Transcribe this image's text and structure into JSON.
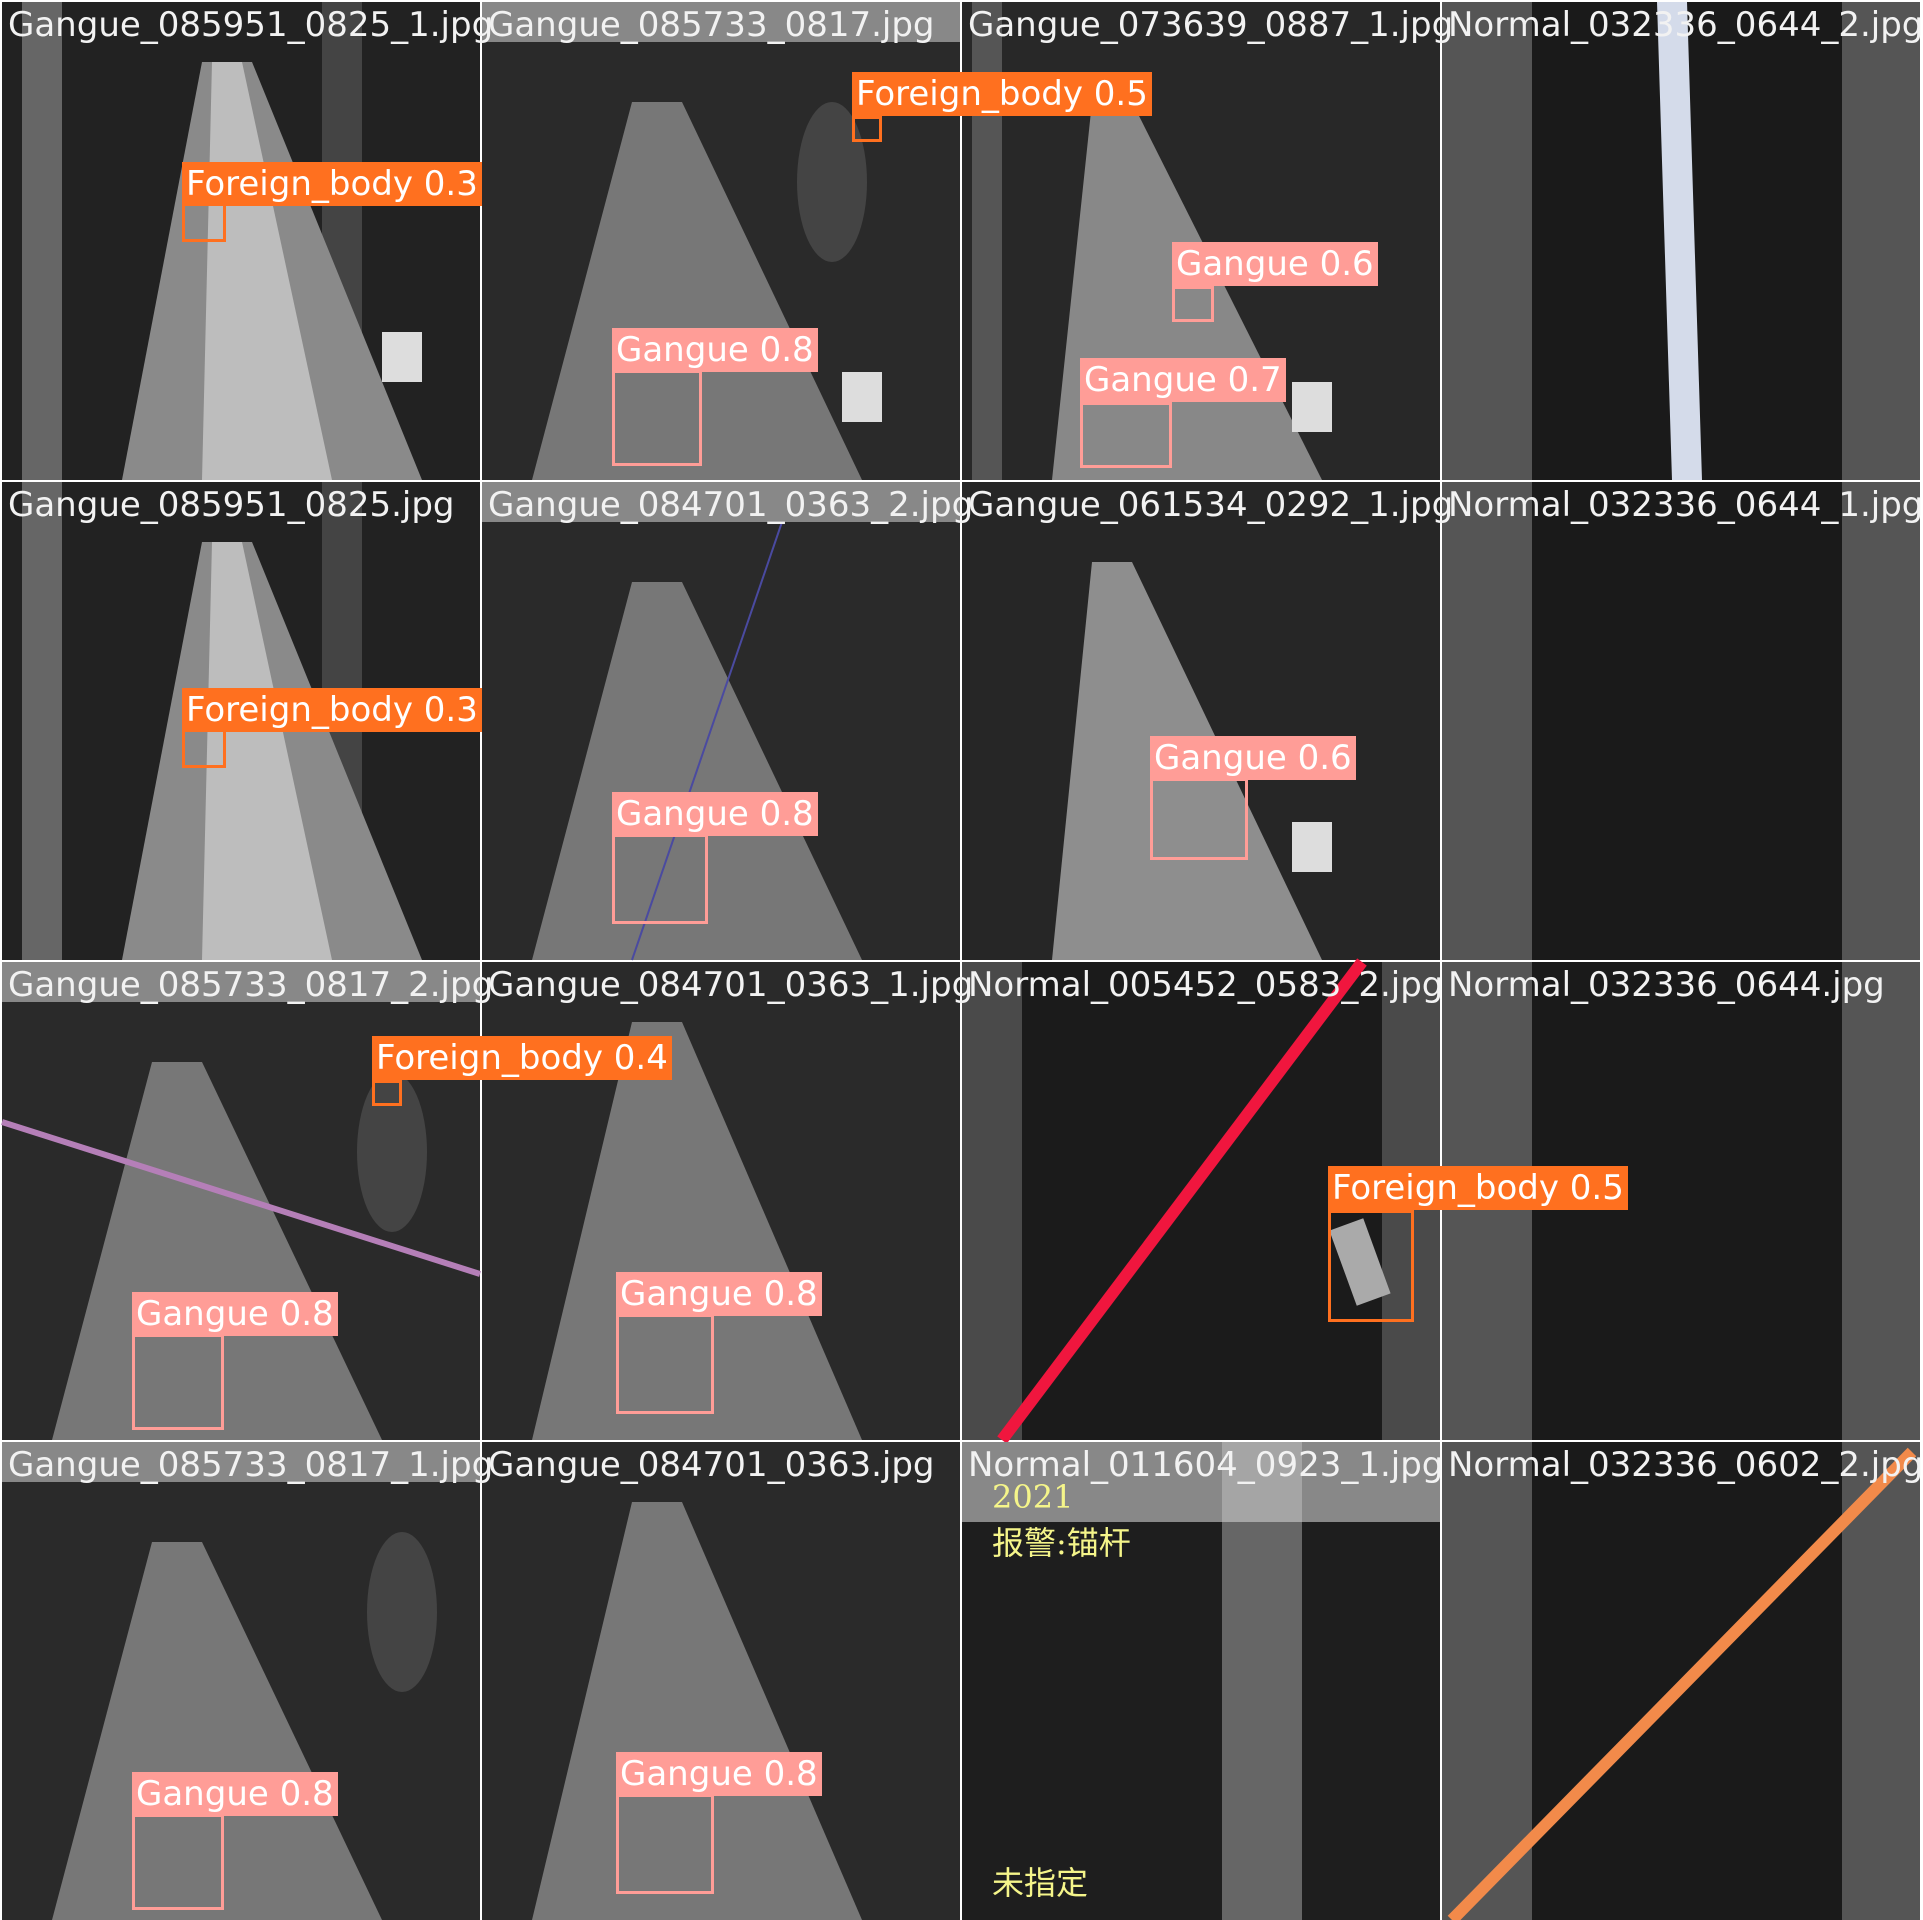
{
  "tiles": [
    {
      "file": "Gangue_085951_0825_1.jpg",
      "labels": [
        "Foreign_body 0.3"
      ]
    },
    {
      "file": "Gangue_085733_0817.jpg",
      "labels": [
        "Foreign_body 0.5",
        "Gangue 0.8"
      ]
    },
    {
      "file": "Gangue_073639_0887_1.jpg",
      "labels": [
        "Gangue 0.6",
        "Gangue 0.7"
      ]
    },
    {
      "file": "Normal_032336_0644_2.jpg",
      "labels": []
    },
    {
      "file": "Gangue_085951_0825.jpg",
      "labels": [
        "Foreign_body 0.3"
      ]
    },
    {
      "file": "Gangue_084701_0363_2.jpg",
      "labels": [
        "Gangue 0.8"
      ]
    },
    {
      "file": "Gangue_061534_0292_1.jpg",
      "labels": [
        "Gangue 0.6"
      ]
    },
    {
      "file": "Normal_032336_0644_1.jpg",
      "labels": []
    },
    {
      "file": "Gangue_085733_0817_2.jpg",
      "labels": [
        "Foreign_body 0.4",
        "Gangue 0.8"
      ]
    },
    {
      "file": "Gangue_084701_0363_1.jpg",
      "labels": [
        "Gangue 0.8"
      ]
    },
    {
      "file": "Normal_005452_0583_2.jpg",
      "labels": [
        "Foreign_body 0.5"
      ]
    },
    {
      "file": "Normal_032336_0644.jpg",
      "labels": []
    },
    {
      "file": "Gangue_085733_0817_1.jpg",
      "labels": [
        "Gangue 0.8"
      ]
    },
    {
      "file": "Gangue_084701_0363.jpg",
      "labels": [
        "Gangue 0.8"
      ]
    },
    {
      "file": "Normal_011604_0923_1.jpg",
      "labels": [],
      "overlay_text": [
        "2021",
        "报警:锚杆",
        "未指定"
      ]
    },
    {
      "file": "Normal_032336_0602_2.jpg",
      "labels": []
    }
  ],
  "colors": {
    "gangue": "#ff9d97",
    "foreign_body": "#ff701f",
    "overlay_text": "#f5f58a"
  }
}
